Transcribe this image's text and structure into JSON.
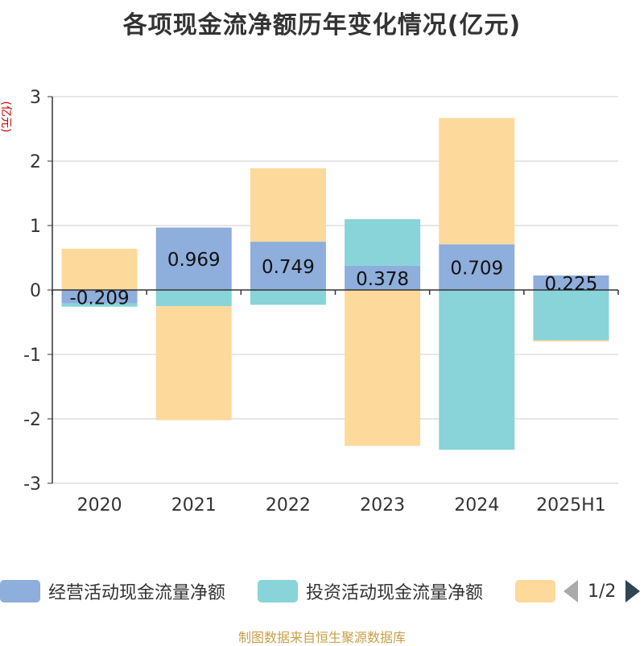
{
  "title": "各项现金流净额历年变化情况(亿元)",
  "source": "制图数据来自恒生聚源数据库",
  "chart_data": {
    "type": "bar",
    "stacked": true,
    "title": "各项现金流净额历年变化情况(亿元)",
    "ylabel": "(亿元)",
    "ylim": [
      -3,
      3
    ],
    "yticks": [
      3,
      2,
      1,
      0,
      -1,
      -2,
      -3
    ],
    "grid": true,
    "categories": [
      "2020",
      "2021",
      "2022",
      "2023",
      "2024",
      "2025H1"
    ],
    "series": [
      {
        "name": "经营活动现金流量净额",
        "color": "#8eaedb",
        "values": [
          -0.209,
          0.969,
          0.749,
          0.378,
          0.709,
          0.225
        ],
        "labels": [
          "-0.209",
          "0.969",
          "0.749",
          "0.378",
          "0.709",
          "0.225"
        ]
      },
      {
        "name": "投资活动现金流量净额",
        "color": "#88d4d8",
        "values": [
          -0.05,
          -0.25,
          -0.23,
          0.72,
          -2.48,
          -0.78
        ]
      },
      {
        "color": "#fdd99c",
        "values": [
          0.64,
          -1.77,
          1.14,
          -2.42,
          1.96,
          -0.02
        ]
      }
    ],
    "legend": "bottom",
    "legend_page": "1/2"
  }
}
